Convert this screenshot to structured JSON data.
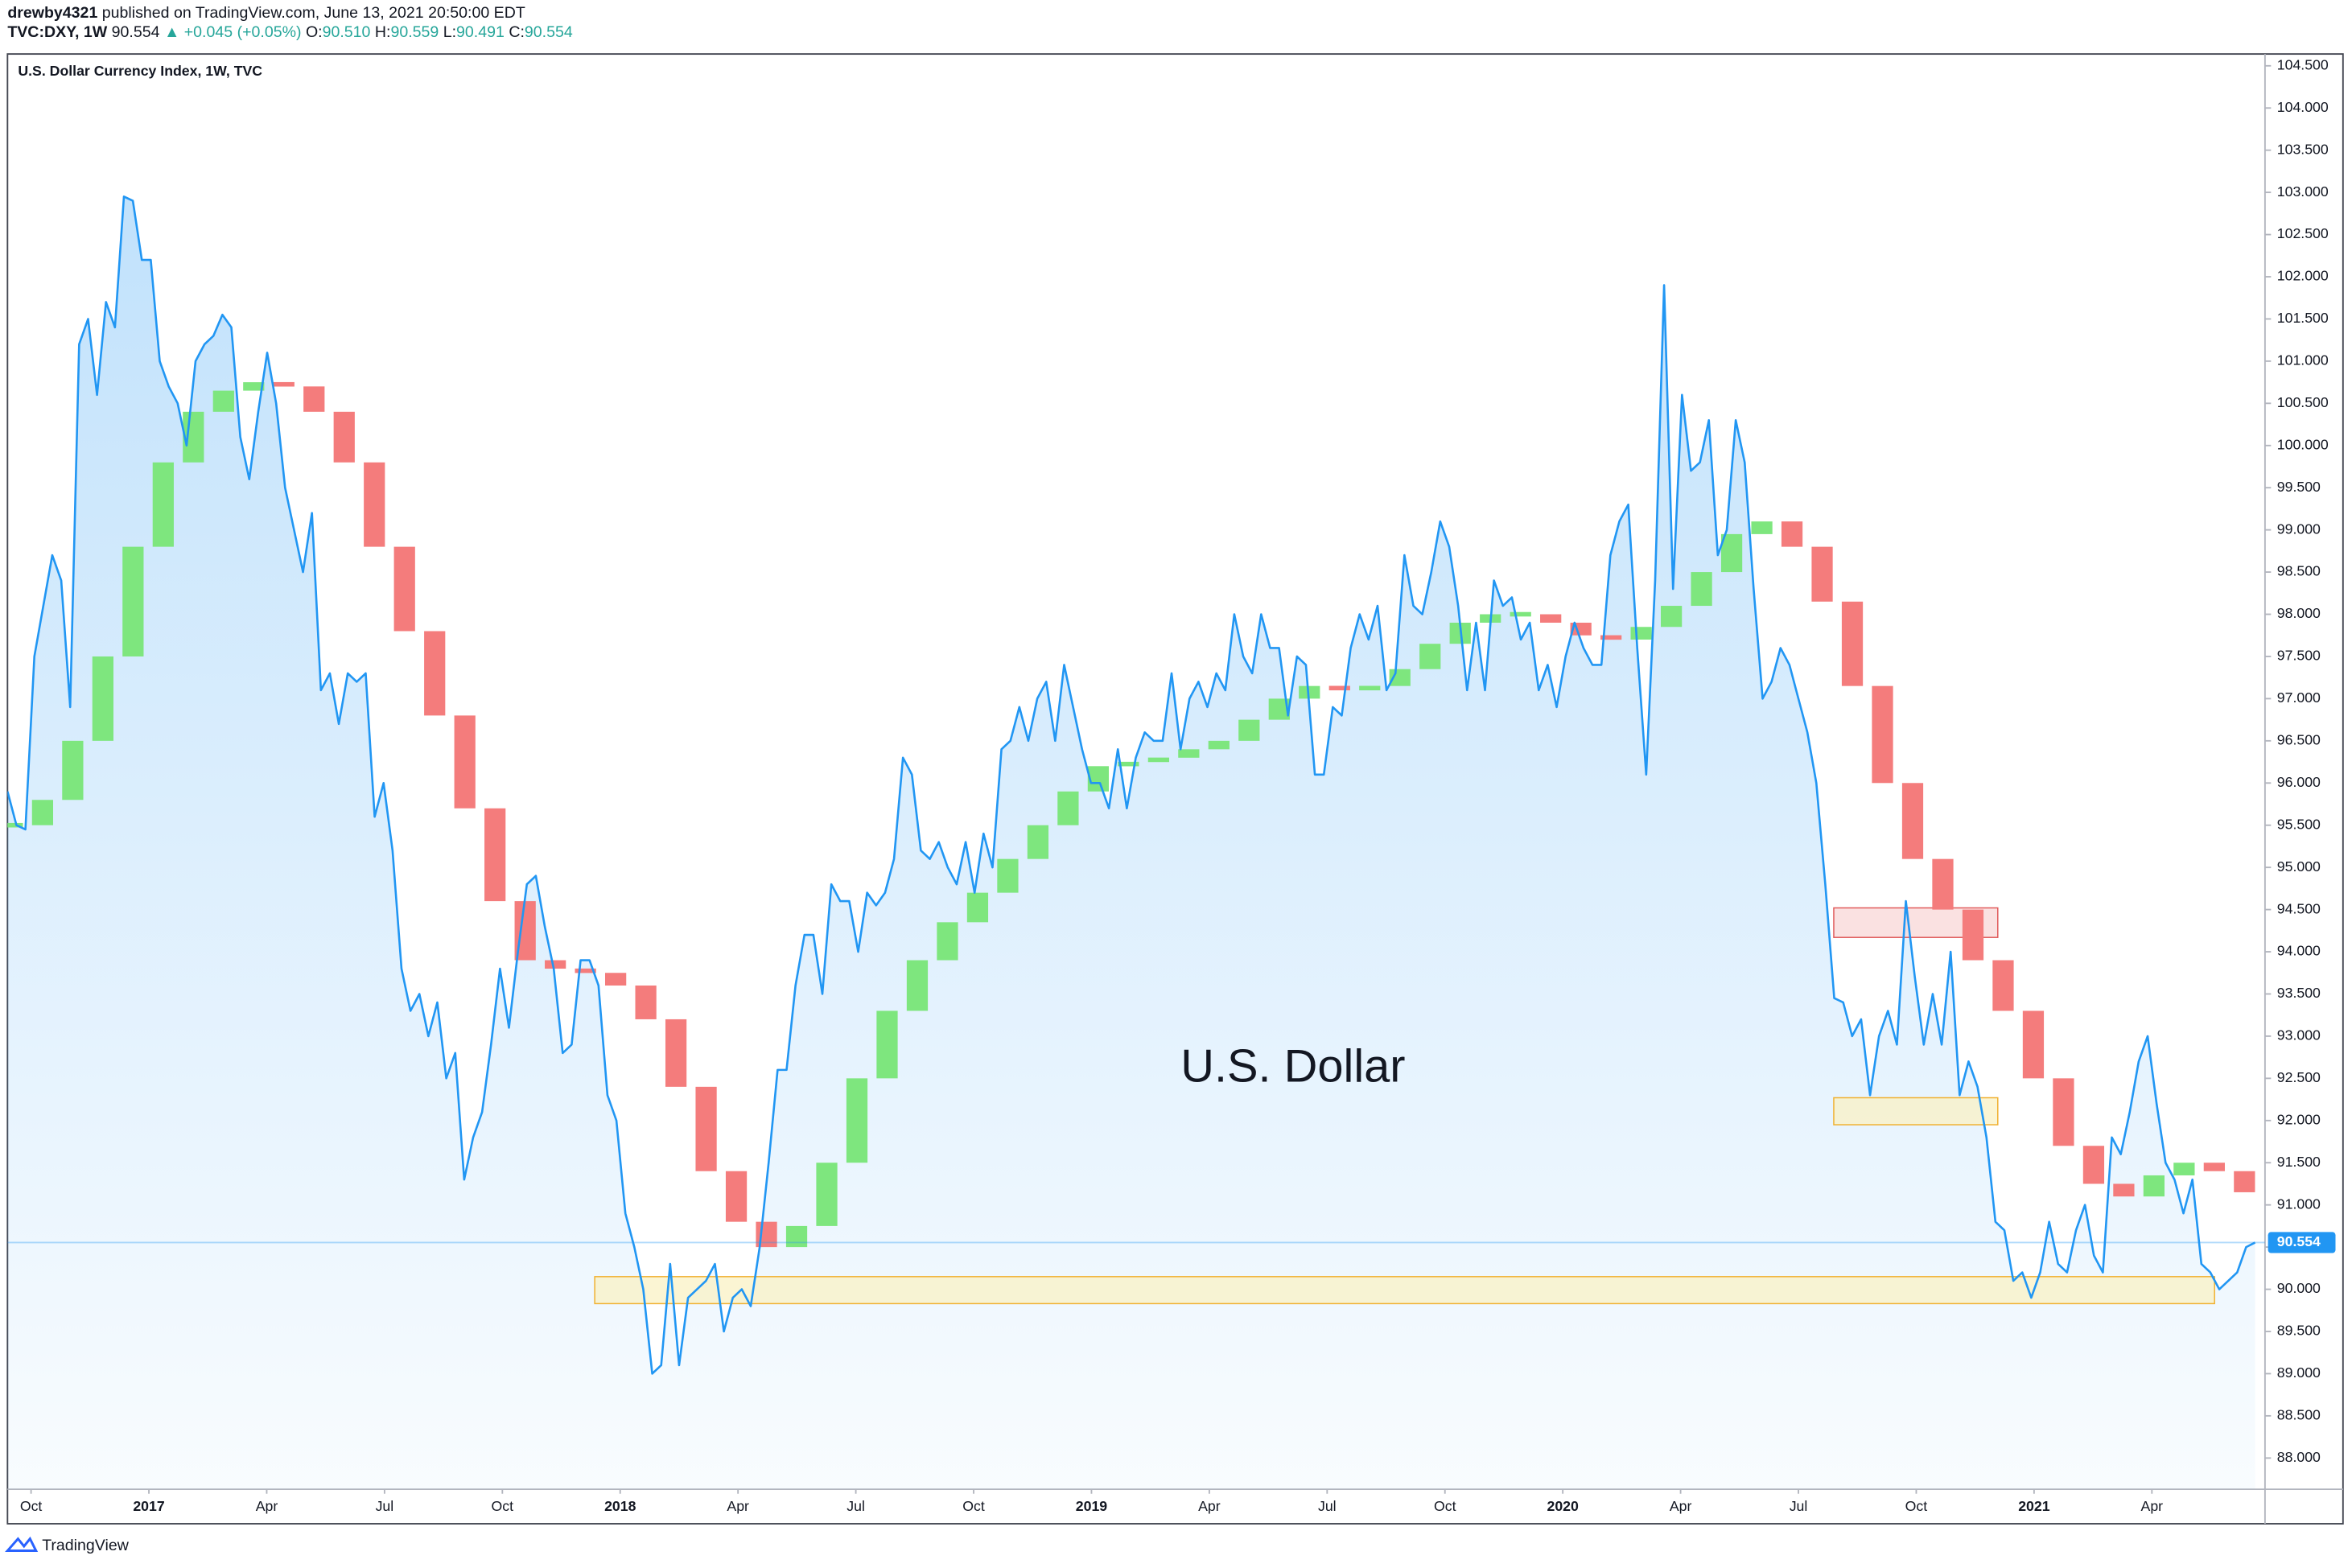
{
  "header": {
    "author": "drewby4321",
    "published": "published on TradingView.com, June 13, 2021 20:50:00 EDT",
    "symbol": "TVC:DXY, 1W",
    "price": "90.554",
    "change": "▲ +0.045 (+0.05%)",
    "ohlc": [
      {
        "label": "O:",
        "value": "90.510"
      },
      {
        "label": "H:",
        "value": "90.559"
      },
      {
        "label": "L:",
        "value": "90.491"
      },
      {
        "label": "C:",
        "value": "90.554"
      }
    ]
  },
  "footer": "TradingView",
  "chart_data": {
    "type": "area",
    "title": "U.S. Dollar Currency Index, 1W, TVC",
    "annotation": "U.S. Dollar",
    "grid": false,
    "xlim": [
      2016.7,
      2021.49
    ],
    "ylim": [
      87.63,
      104.64
    ],
    "xticks": [
      {
        "value": 2016.75,
        "label": "Oct"
      },
      2017,
      {
        "value": 2017.25,
        "label": "Apr"
      },
      {
        "value": 2017.5,
        "label": "Jul"
      },
      {
        "value": 2017.75,
        "label": "Oct"
      },
      2018,
      {
        "value": 2018.25,
        "label": "Apr"
      },
      {
        "value": 2018.5,
        "label": "Jul"
      },
      {
        "value": 2018.75,
        "label": "Oct"
      },
      2019,
      {
        "value": 2019.25,
        "label": "Apr"
      },
      {
        "value": 2019.5,
        "label": "Jul"
      },
      {
        "value": 2019.75,
        "label": "Oct"
      },
      2020,
      {
        "value": 2020.25,
        "label": "Apr"
      },
      {
        "value": 2020.5,
        "label": "Jul"
      },
      {
        "value": 2020.75,
        "label": "Oct"
      },
      2021,
      {
        "value": 2021.25,
        "label": "Apr"
      }
    ],
    "yticks": [
      {
        "value": 88,
        "label": "88.000"
      },
      {
        "value": 88.5,
        "label": "88.500"
      },
      {
        "value": 89,
        "label": "89.000"
      },
      {
        "value": 89.5,
        "label": "89.500"
      },
      {
        "value": 90,
        "label": "90.000"
      },
      {
        "value": 90.5,
        "label": "90.500"
      },
      {
        "value": 91,
        "label": "91.000"
      },
      {
        "value": 91.5,
        "label": "91.500"
      },
      {
        "value": 92,
        "label": "92.000"
      },
      {
        "value": 92.5,
        "label": "92.500"
      },
      {
        "value": 93,
        "label": "93.000"
      },
      {
        "value": 93.5,
        "label": "93.500"
      },
      {
        "value": 94,
        "label": "94.000"
      },
      {
        "value": 94.5,
        "label": "94.500"
      },
      {
        "value": 95,
        "label": "95.000"
      },
      {
        "value": 95.5,
        "label": "95.500"
      },
      {
        "value": 96,
        "label": "96.000"
      },
      {
        "value": 96.5,
        "label": "96.500"
      },
      {
        "value": 97,
        "label": "97.000"
      },
      {
        "value": 97.5,
        "label": "97.500"
      },
      {
        "value": 98,
        "label": "98.000"
      },
      {
        "value": 98.5,
        "label": "98.500"
      },
      {
        "value": 99,
        "label": "99.000"
      },
      {
        "value": 99.5,
        "label": "99.500"
      },
      {
        "value": 100,
        "label": "100.000"
      },
      {
        "value": 100.5,
        "label": "100.500"
      },
      {
        "value": 101,
        "label": "101.000"
      },
      {
        "value": 101.5,
        "label": "101.500"
      },
      {
        "value": 102,
        "label": "102.000"
      },
      {
        "value": 102.5,
        "label": "102.500"
      },
      {
        "value": 103,
        "label": "103.000"
      },
      {
        "value": 103.5,
        "label": "103.500"
      },
      {
        "value": 104,
        "label": "104.000"
      },
      {
        "value": 104.5,
        "label": "104.500"
      }
    ],
    "last_price": 90.554,
    "last_price_color": "#2196f3",
    "series": [
      {
        "color": "#2196f3",
        "x": [
          2016.7,
          2016.719,
          2016.738,
          2016.757,
          2016.776,
          2016.795,
          2016.814,
          2016.833,
          2016.852,
          2016.871,
          2016.89,
          2016.909,
          2016.928,
          2016.947,
          2016.966,
          2016.985,
          2017.004,
          2017.023,
          2017.042,
          2017.061,
          2017.08,
          2017.099,
          2017.118,
          2017.137,
          2017.156,
          2017.175,
          2017.194,
          2017.213,
          2017.232,
          2017.251,
          2017.27,
          2017.289,
          2017.308,
          2017.327,
          2017.346,
          2017.365,
          2017.384,
          2017.403,
          2017.422,
          2017.441,
          2017.46,
          2017.479,
          2017.498,
          2017.517,
          2017.536,
          2017.555,
          2017.574,
          2017.593,
          2017.612,
          2017.631,
          2017.65,
          2017.669,
          2017.688,
          2017.707,
          2017.726,
          2017.745,
          2017.764,
          2017.783,
          2017.802,
          2017.821,
          2017.84,
          2017.859,
          2017.878,
          2017.897,
          2017.916,
          2017.935,
          2017.954,
          2017.973,
          2017.992,
          2018.011,
          2018.03,
          2018.049,
          2018.068,
          2018.087,
          2018.106,
          2018.125,
          2018.144,
          2018.163,
          2018.182,
          2018.201,
          2018.22,
          2018.239,
          2018.258,
          2018.277,
          2018.296,
          2018.315,
          2018.334,
          2018.353,
          2018.372,
          2018.391,
          2018.41,
          2018.429,
          2018.448,
          2018.467,
          2018.486,
          2018.505,
          2018.524,
          2018.543,
          2018.562,
          2018.581,
          2018.6,
          2018.619,
          2018.638,
          2018.657,
          2018.676,
          2018.695,
          2018.714,
          2018.733,
          2018.752,
          2018.771,
          2018.79,
          2018.809,
          2018.828,
          2018.847,
          2018.866,
          2018.885,
          2018.904,
          2018.923,
          2018.942,
          2018.961,
          2018.98,
          2018.999,
          2019.018,
          2019.037,
          2019.056,
          2019.075,
          2019.094,
          2019.113,
          2019.132,
          2019.151,
          2019.17,
          2019.189,
          2019.208,
          2019.227,
          2019.246,
          2019.265,
          2019.284,
          2019.303,
          2019.322,
          2019.341,
          2019.36,
          2019.379,
          2019.398,
          2019.417,
          2019.436,
          2019.455,
          2019.474,
          2019.493,
          2019.512,
          2019.531,
          2019.55,
          2019.569,
          2019.588,
          2019.607,
          2019.626,
          2019.645,
          2019.664,
          2019.683,
          2019.702,
          2019.721,
          2019.74,
          2019.759,
          2019.778,
          2019.797,
          2019.816,
          2019.835,
          2019.854,
          2019.873,
          2019.892,
          2019.911,
          2019.93,
          2019.949,
          2019.968,
          2019.987,
          2020.006,
          2020.025,
          2020.044,
          2020.063,
          2020.082,
          2020.101,
          2020.12,
          2020.139,
          2020.158,
          2020.177,
          2020.196,
          2020.215,
          2020.234,
          2020.253,
          2020.272,
          2020.291,
          2020.31,
          2020.329,
          2020.348,
          2020.367,
          2020.386,
          2020.405,
          2020.424,
          2020.443,
          2020.462,
          2020.481,
          2020.5,
          2020.519,
          2020.538,
          2020.557,
          2020.576,
          2020.595,
          2020.614,
          2020.633,
          2020.652,
          2020.671,
          2020.69,
          2020.709,
          2020.728,
          2020.747,
          2020.766,
          2020.785,
          2020.804,
          2020.823,
          2020.842,
          2020.861,
          2020.88,
          2020.899,
          2020.918,
          2020.937,
          2020.956,
          2020.975,
          2020.994,
          2021.013,
          2021.032,
          2021.051,
          2021.07,
          2021.089,
          2021.108,
          2021.127,
          2021.146,
          2021.165,
          2021.184,
          2021.203,
          2021.222,
          2021.241,
          2021.26,
          2021.279,
          2021.298,
          2021.317,
          2021.336,
          2021.355,
          2021.374,
          2021.393,
          2021.412,
          2021.431,
          2021.45,
          2021.469
        ],
        "values": [
          95.9,
          95.5,
          95.45,
          97.5,
          98.1,
          98.7,
          98.4,
          96.9,
          101.2,
          101.5,
          100.6,
          101.7,
          101.4,
          102.95,
          102.9,
          102.2,
          102.2,
          101.0,
          100.7,
          100.5,
          100.0,
          101.0,
          101.2,
          101.3,
          101.55,
          101.4,
          100.1,
          99.6,
          100.4,
          101.1,
          100.5,
          99.5,
          99.0,
          98.5,
          99.2,
          97.1,
          97.3,
          96.7,
          97.3,
          97.2,
          97.3,
          95.6,
          96.0,
          95.2,
          93.8,
          93.3,
          93.5,
          93.0,
          93.4,
          92.5,
          92.8,
          91.3,
          91.8,
          92.1,
          92.9,
          93.8,
          93.1,
          94.0,
          94.8,
          94.9,
          94.3,
          93.8,
          92.8,
          92.9,
          93.9,
          93.9,
          93.6,
          92.3,
          92.0,
          90.9,
          90.5,
          90.0,
          89.0,
          89.1,
          90.3,
          89.1,
          89.9,
          90.0,
          90.1,
          90.3,
          89.5,
          89.9,
          90.0,
          89.8,
          90.5,
          91.5,
          92.6,
          92.6,
          93.6,
          94.2,
          94.2,
          93.5,
          94.8,
          94.6,
          94.6,
          94.0,
          94.7,
          94.55,
          94.7,
          95.1,
          96.3,
          96.1,
          95.2,
          95.1,
          95.3,
          95.0,
          94.8,
          95.3,
          94.7,
          95.4,
          95.0,
          96.4,
          96.5,
          96.9,
          96.5,
          97.0,
          97.2,
          96.5,
          97.4,
          96.9,
          96.4,
          96.0,
          96.0,
          95.7,
          96.4,
          95.7,
          96.3,
          96.6,
          96.5,
          96.5,
          97.3,
          96.4,
          97.0,
          97.2,
          96.9,
          97.3,
          97.1,
          98.0,
          97.5,
          97.3,
          98.0,
          97.6,
          97.6,
          96.8,
          97.5,
          97.4,
          96.1,
          96.1,
          96.9,
          96.8,
          97.6,
          98.0,
          97.7,
          98.1,
          97.1,
          97.3,
          98.7,
          98.1,
          98.0,
          98.5,
          99.1,
          98.8,
          98.1,
          97.1,
          97.9,
          97.1,
          98.4,
          98.1,
          98.2,
          97.7,
          97.9,
          97.1,
          97.4,
          96.9,
          97.5,
          97.9,
          97.6,
          97.4,
          97.4,
          98.7,
          99.1,
          99.3,
          97.6,
          96.1,
          98.4,
          101.9,
          98.3,
          100.6,
          99.7,
          99.8,
          100.3,
          98.7,
          99.0,
          100.3,
          99.8,
          98.3,
          97.0,
          97.2,
          97.6,
          97.4,
          97.0,
          96.6,
          96.0,
          94.8,
          93.45,
          93.4,
          93.0,
          93.2,
          92.3,
          93.0,
          93.3,
          92.9,
          94.6,
          93.7,
          92.9,
          93.5,
          92.9,
          94.0,
          92.3,
          92.7,
          92.4,
          91.8,
          90.8,
          90.7,
          90.1,
          90.2,
          89.9,
          90.2,
          90.8,
          90.3,
          90.2,
          90.7,
          91.0,
          90.4,
          90.2,
          91.8,
          91.6,
          92.1,
          92.7,
          93.0,
          92.2,
          91.5,
          91.3,
          90.9,
          91.3,
          90.3,
          90.2,
          90.0,
          90.1,
          90.2,
          90.5,
          90.554
        ]
      }
    ],
    "moving_average": {
      "up_color": "#7ee67e",
      "down_color": "#f47c7c",
      "x": [
        2016.72,
        2016.784,
        2016.848,
        2016.912,
        2016.976,
        2017.04,
        2017.104,
        2017.168,
        2017.232,
        2017.296,
        2017.36,
        2017.424,
        2017.488,
        2017.552,
        2017.616,
        2017.68,
        2017.744,
        2017.808,
        2017.872,
        2017.936,
        2018.0,
        2018.064,
        2018.128,
        2018.192,
        2018.256,
        2018.32,
        2018.384,
        2018.448,
        2018.512,
        2018.576,
        2018.64,
        2018.704,
        2018.768,
        2018.832,
        2018.896,
        2018.96,
        2019.024,
        2019.088,
        2019.152,
        2019.216,
        2019.28,
        2019.344,
        2019.408,
        2019.472,
        2019.536,
        2019.6,
        2019.664,
        2019.728,
        2019.792,
        2019.856,
        2019.92,
        2019.984,
        2020.048,
        2020.112,
        2020.176,
        2020.24,
        2020.304,
        2020.368,
        2020.432,
        2020.496,
        2020.56,
        2020.624,
        2020.688,
        2020.752,
        2020.816,
        2020.88,
        2020.944,
        2021.008,
        2021.072,
        2021.136,
        2021.2,
        2021.264,
        2021.328,
        2021.392,
        2021.456
      ],
      "values": [
        95.5,
        95.8,
        96.5,
        97.5,
        98.8,
        99.8,
        100.4,
        100.65,
        100.75,
        100.7,
        100.4,
        99.8,
        98.8,
        97.8,
        96.8,
        95.7,
        94.6,
        93.9,
        93.8,
        93.75,
        93.6,
        93.2,
        92.4,
        91.4,
        90.8,
        90.5,
        90.75,
        91.5,
        92.5,
        93.3,
        93.9,
        94.35,
        94.7,
        95.1,
        95.5,
        95.9,
        96.2,
        96.25,
        96.3,
        96.4,
        96.5,
        96.75,
        97.0,
        97.15,
        97.1,
        97.15,
        97.35,
        97.65,
        97.9,
        98.0,
        98.0,
        97.9,
        97.75,
        97.7,
        97.85,
        98.1,
        98.5,
        98.95,
        99.1,
        98.8,
        98.15,
        97.15,
        96.0,
        95.1,
        94.5,
        93.9,
        93.3,
        92.5,
        91.7,
        91.25,
        91.1,
        91.35,
        91.5,
        91.4,
        91.15
      ]
    },
    "zones": [
      {
        "x": [
          2020.575,
          2020.923
        ],
        "y": [
          94.17,
          94.52
        ],
        "fill": "#f8d7d7",
        "stroke": "#e05a5a"
      },
      {
        "x": [
          2020.575,
          2020.923
        ],
        "y": [
          91.95,
          92.27
        ],
        "fill": "#faf2c4",
        "stroke": "#f0b030"
      },
      {
        "x": [
          2017.946,
          2021.383
        ],
        "y": [
          89.83,
          90.15
        ],
        "fill": "#faf2c4",
        "stroke": "#f0b030"
      }
    ]
  }
}
